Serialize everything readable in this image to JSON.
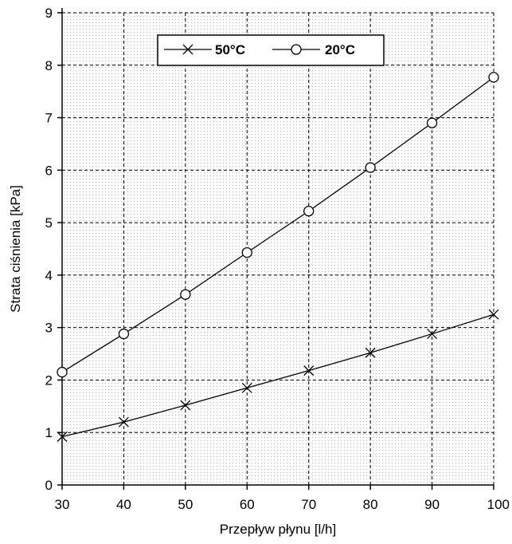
{
  "chart_data": {
    "type": "line",
    "xlabel": "Przepływ płynu [l/h]",
    "ylabel": "Strata ciśnienia [kPa]",
    "xlim": [
      30,
      100
    ],
    "ylim": [
      0,
      9
    ],
    "x": [
      30,
      40,
      50,
      60,
      70,
      80,
      90,
      100
    ],
    "x_tick_labels": [
      "30",
      "40",
      "50",
      "60",
      "70",
      "80",
      "90",
      "100"
    ],
    "y_tick_labels": [
      "0",
      "1",
      "2",
      "3",
      "4",
      "5",
      "6",
      "7",
      "8",
      "9"
    ],
    "grid": true,
    "legend_position": "top-center",
    "series": [
      {
        "name": "50°C",
        "marker": "x",
        "color": "#000000",
        "values": [
          0.92,
          1.2,
          1.52,
          1.85,
          2.18,
          2.52,
          2.88,
          3.25
        ]
      },
      {
        "name": "20°C",
        "marker": "o",
        "color": "#000000",
        "values": [
          2.15,
          2.88,
          3.63,
          4.43,
          5.22,
          6.05,
          6.9,
          7.77
        ]
      }
    ]
  }
}
